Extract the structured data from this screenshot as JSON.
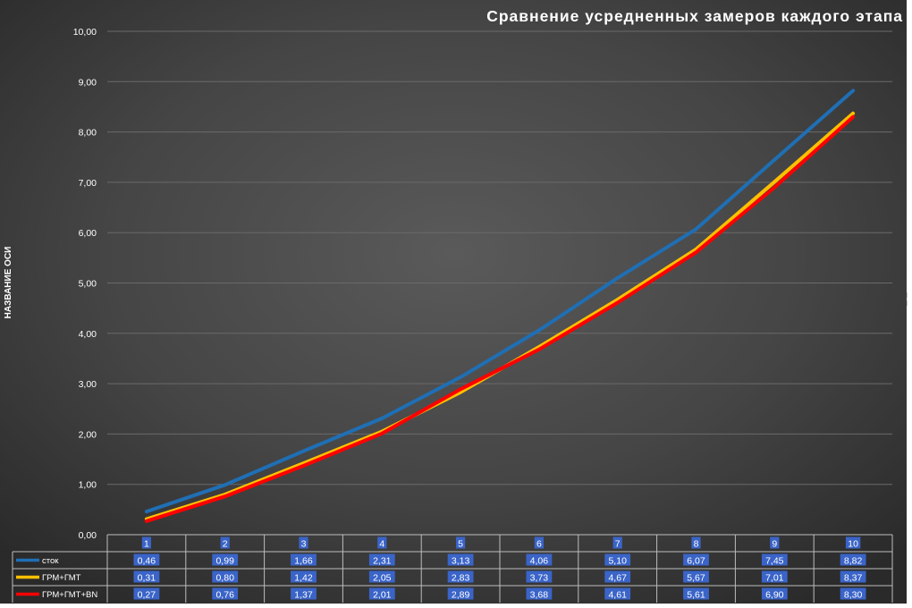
{
  "chart_data": {
    "type": "line",
    "title": "Сравнение усредненных замеров каждого этапа",
    "xlabel": "",
    "ylabel": "НАЗВАНИЕ ОСИ",
    "ylim": [
      0,
      10
    ],
    "y_ticks": [
      "0,00",
      "1,00",
      "2,00",
      "3,00",
      "4,00",
      "5,00",
      "6,00",
      "7,00",
      "8,00",
      "9,00",
      "10,00"
    ],
    "categories": [
      "1",
      "2",
      "3",
      "4",
      "5",
      "6",
      "7",
      "8",
      "9",
      "10"
    ],
    "grid": true,
    "legend": "data table",
    "series": [
      {
        "name": "сток",
        "color": "#1f6fb5",
        "values": [
          0.46,
          0.99,
          1.66,
          2.31,
          3.13,
          4.06,
          5.1,
          6.07,
          7.45,
          8.82
        ],
        "labels": [
          "0,46",
          "0,99",
          "1,66",
          "2,31",
          "3,13",
          "4,06",
          "5,10",
          "6,07",
          "7,45",
          "8,82"
        ]
      },
      {
        "name": "ГРМ+ГМТ",
        "color": "#ffc000",
        "values": [
          0.31,
          0.8,
          1.42,
          2.05,
          2.83,
          3.73,
          4.67,
          5.67,
          7.01,
          8.37
        ],
        "labels": [
          "0,31",
          "0,80",
          "1,42",
          "2,05",
          "2,83",
          "3,73",
          "4,67",
          "5,67",
          "7,01",
          "8,37"
        ]
      },
      {
        "name": "ГРМ+ГМТ+BN",
        "color": "#ff0000",
        "values": [
          0.27,
          0.76,
          1.37,
          2.01,
          2.89,
          3.68,
          4.61,
          5.61,
          6.9,
          8.3
        ],
        "labels": [
          "0,27",
          "0,76",
          "1,37",
          "2,01",
          "2,89",
          "3,68",
          "4,61",
          "5,61",
          "6,90",
          "8,30"
        ]
      }
    ]
  }
}
